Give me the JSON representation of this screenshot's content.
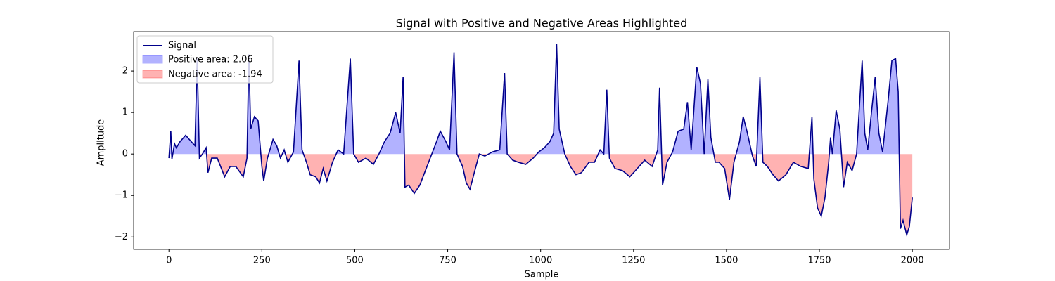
{
  "chart_data": {
    "type": "line",
    "title": "Signal with Positive and Negative Areas Highlighted",
    "x_label": "Sample",
    "y_label": "Amplitude",
    "xlim": [
      -95,
      2100
    ],
    "ylim": [
      -2.3,
      2.95
    ],
    "xticks": [
      0,
      250,
      500,
      750,
      1000,
      1250,
      1500,
      1750,
      2000
    ],
    "yticks": [
      {
        "value": -2,
        "label": "−2"
      },
      {
        "value": -1,
        "label": "−1"
      },
      0,
      1,
      2
    ],
    "legend": "upper left",
    "x": [
      0,
      5,
      8,
      15,
      20,
      30,
      45,
      60,
      70,
      76,
      82,
      90,
      100,
      105,
      115,
      130,
      150,
      165,
      180,
      200,
      210,
      215,
      220,
      230,
      240,
      250,
      255,
      265,
      280,
      290,
      300,
      310,
      320,
      335,
      350,
      358,
      370,
      380,
      395,
      405,
      415,
      425,
      440,
      455,
      470,
      488,
      497,
      510,
      530,
      550,
      565,
      580,
      595,
      610,
      622,
      630,
      635,
      645,
      660,
      675,
      690,
      705,
      720,
      730,
      745,
      755,
      767,
      775,
      790,
      800,
      810,
      820,
      835,
      850,
      870,
      890,
      903,
      910,
      925,
      940,
      960,
      980,
      995,
      1010,
      1025,
      1035,
      1043,
      1050,
      1065,
      1080,
      1095,
      1110,
      1130,
      1145,
      1160,
      1170,
      1178,
      1185,
      1200,
      1220,
      1240,
      1260,
      1280,
      1300,
      1315,
      1320,
      1328,
      1340,
      1355,
      1370,
      1385,
      1395,
      1405,
      1420,
      1430,
      1440,
      1450,
      1458,
      1470,
      1480,
      1495,
      1508,
      1520,
      1535,
      1545,
      1555,
      1570,
      1580,
      1590,
      1598,
      1610,
      1625,
      1640,
      1660,
      1680,
      1700,
      1720,
      1730,
      1735,
      1745,
      1755,
      1765,
      1775,
      1780,
      1785,
      1795,
      1805,
      1815,
      1825,
      1838,
      1850,
      1865,
      1872,
      1880,
      1890,
      1900,
      1910,
      1920,
      1935,
      1945,
      1955,
      1962,
      1968,
      1975,
      1985,
      1992,
      2000
    ],
    "series": [
      {
        "name": "Signal",
        "color": "#00008b",
        "values": [
          -0.1,
          0.55,
          -0.13,
          0.25,
          0.15,
          0.3,
          0.45,
          0.3,
          0.2,
          2.3,
          -0.1,
          0.0,
          0.15,
          -0.45,
          -0.1,
          -0.1,
          -0.55,
          -0.3,
          -0.3,
          -0.55,
          -0.1,
          2.4,
          0.6,
          0.9,
          0.8,
          -0.3,
          -0.65,
          -0.1,
          0.35,
          0.2,
          -0.1,
          0.1,
          -0.2,
          0.05,
          2.25,
          0.1,
          -0.2,
          -0.5,
          -0.55,
          -0.7,
          -0.35,
          -0.65,
          -0.2,
          0.1,
          0.0,
          2.3,
          0.0,
          -0.2,
          -0.1,
          -0.25,
          0.0,
          0.3,
          0.5,
          1.0,
          0.5,
          1.85,
          -0.8,
          -0.75,
          -0.95,
          -0.75,
          -0.4,
          -0.05,
          0.3,
          0.55,
          0.3,
          0.1,
          2.45,
          0.0,
          -0.3,
          -0.7,
          -0.85,
          -0.5,
          0.0,
          -0.05,
          0.05,
          0.1,
          1.95,
          0.0,
          -0.15,
          -0.2,
          -0.25,
          -0.1,
          0.05,
          0.15,
          0.3,
          0.5,
          2.65,
          0.6,
          0.0,
          -0.3,
          -0.5,
          -0.45,
          -0.2,
          -0.2,
          0.1,
          0.0,
          1.55,
          -0.1,
          -0.35,
          -0.4,
          -0.55,
          -0.35,
          -0.15,
          -0.3,
          0.1,
          1.6,
          -0.75,
          -0.2,
          0.05,
          0.55,
          0.6,
          1.25,
          0.1,
          2.1,
          1.7,
          0.0,
          1.8,
          0.4,
          -0.2,
          -0.2,
          -0.35,
          -1.1,
          -0.2,
          0.3,
          0.9,
          0.55,
          -0.05,
          -0.3,
          1.85,
          -0.2,
          -0.3,
          -0.5,
          -0.65,
          -0.5,
          -0.2,
          -0.3,
          -0.35,
          0.9,
          -0.6,
          -1.3,
          -1.5,
          -1.05,
          -0.2,
          0.4,
          0.0,
          1.05,
          0.6,
          -0.8,
          -0.2,
          -0.4,
          0.0,
          2.25,
          0.5,
          0.1,
          1.0,
          1.85,
          0.5,
          0.05,
          1.3,
          2.25,
          2.3,
          1.5,
          -1.8,
          -1.6,
          -1.95,
          -1.75,
          -1.05
        ]
      }
    ],
    "fills": [
      {
        "name": "Positive area: 2.06",
        "color": "#0000ff",
        "where": "above"
      },
      {
        "name": "Negative area: -1.94",
        "color": "#ff0000",
        "where": "below"
      }
    ]
  }
}
